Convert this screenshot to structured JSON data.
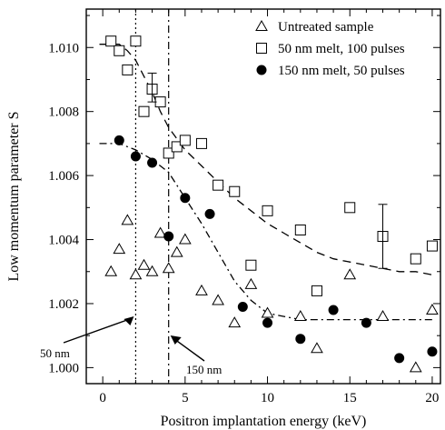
{
  "chart_data": {
    "type": "scatter",
    "xlabel": "Positron implantation energy (keV)",
    "ylabel": "Low momentum parameter S",
    "xlim": [
      -1,
      20.5
    ],
    "ylim": [
      0.9995,
      1.0112
    ],
    "xticks": [
      0,
      5,
      10,
      15,
      20
    ],
    "xtick_labels": [
      "0",
      "5",
      "10",
      "15",
      "20"
    ],
    "yticks": [
      1.0,
      1.002,
      1.004,
      1.006,
      1.008,
      1.01
    ],
    "ytick_labels": [
      "1.000",
      "1.002",
      "1.004",
      "1.006",
      "1.008",
      "1.010"
    ],
    "grid": false,
    "legend_position": "top-right",
    "series": [
      {
        "name": "Untreated sample",
        "marker": "triangle-open",
        "points": [
          [
            0.5,
            1.003
          ],
          [
            1.0,
            1.0037
          ],
          [
            1.5,
            1.0046
          ],
          [
            2.0,
            1.0029
          ],
          [
            2.5,
            1.0032
          ],
          [
            3.0,
            1.003
          ],
          [
            3.5,
            1.0042
          ],
          [
            4.0,
            1.0031
          ],
          [
            4.5,
            1.0036
          ],
          [
            5.0,
            1.004
          ],
          [
            6.0,
            1.0024
          ],
          [
            7.0,
            1.0021
          ],
          [
            8.0,
            1.0014
          ],
          [
            9.0,
            1.0026
          ],
          [
            10.0,
            1.0017
          ],
          [
            12.0,
            1.0016
          ],
          [
            13.0,
            1.0006
          ],
          [
            15.0,
            1.0029
          ],
          [
            17.0,
            1.0016
          ],
          [
            19.0,
            1.0
          ],
          [
            20.0,
            1.0018
          ]
        ]
      },
      {
        "name": "50 nm melt, 100 pulses",
        "marker": "square-open",
        "points": [
          [
            0.5,
            1.0102
          ],
          [
            1.0,
            1.0099
          ],
          [
            1.5,
            1.0093
          ],
          [
            2.0,
            1.0102
          ],
          [
            2.5,
            1.008
          ],
          [
            3.0,
            1.0087
          ],
          [
            3.5,
            1.0083
          ],
          [
            4.0,
            1.0067
          ],
          [
            4.5,
            1.0069
          ],
          [
            5.0,
            1.0071
          ],
          [
            6.0,
            1.007
          ],
          [
            7.0,
            1.0057
          ],
          [
            8.0,
            1.0055
          ],
          [
            9.0,
            1.0032
          ],
          [
            10.0,
            1.0049
          ],
          [
            12.0,
            1.0043
          ],
          [
            13.0,
            1.0024
          ],
          [
            15.0,
            1.005
          ],
          [
            17.0,
            1.0041
          ],
          [
            19.0,
            1.0034
          ],
          [
            20.0,
            1.0038
          ]
        ],
        "error_bars": [
          {
            "x": 3.0,
            "y": 1.0087,
            "low": 1.0083,
            "high": 1.0092
          },
          {
            "x": 17.0,
            "y": 1.0041,
            "low": 1.0031,
            "high": 1.0051
          }
        ]
      },
      {
        "name": "150 nm melt, 50 pulses",
        "marker": "circle-filled",
        "points": [
          [
            1.0,
            1.0071
          ],
          [
            2.0,
            1.0066
          ],
          [
            3.0,
            1.0064
          ],
          [
            4.0,
            1.0041
          ],
          [
            5.0,
            1.0053
          ],
          [
            6.5,
            1.0048
          ],
          [
            8.5,
            1.0019
          ],
          [
            10.0,
            1.0014
          ],
          [
            12.0,
            1.0009
          ],
          [
            14.0,
            1.0018
          ],
          [
            16.0,
            1.0014
          ],
          [
            18.0,
            1.0003
          ],
          [
            20.0,
            1.0005
          ]
        ]
      }
    ],
    "fit_curves": [
      {
        "style": "dashed",
        "points": [
          [
            -0.2,
            1.0101
          ],
          [
            1.0,
            1.0101
          ],
          [
            1.5,
            1.0099
          ],
          [
            2.0,
            1.0096
          ],
          [
            2.5,
            1.0091
          ],
          [
            3.0,
            1.0086
          ],
          [
            3.5,
            1.008
          ],
          [
            4.0,
            1.0075
          ],
          [
            5.0,
            1.0068
          ],
          [
            6.0,
            1.0063
          ],
          [
            7.0,
            1.0058
          ],
          [
            8.0,
            1.0053
          ],
          [
            9.0,
            1.0049
          ],
          [
            10.0,
            1.0045
          ],
          [
            11.0,
            1.0042
          ],
          [
            12.0,
            1.0039
          ],
          [
            13.0,
            1.0036
          ],
          [
            14.0,
            1.0034
          ],
          [
            15.0,
            1.0033
          ],
          [
            16.0,
            1.0032
          ],
          [
            17.0,
            1.0031
          ],
          [
            18.0,
            1.003
          ],
          [
            19.0,
            1.003
          ],
          [
            20.0,
            1.0029
          ]
        ]
      },
      {
        "style": "dash-dot",
        "points": [
          [
            -0.2,
            1.007
          ],
          [
            1.0,
            1.007
          ],
          [
            2.0,
            1.0068
          ],
          [
            3.0,
            1.0065
          ],
          [
            4.0,
            1.0061
          ],
          [
            5.0,
            1.0053
          ],
          [
            6.0,
            1.0045
          ],
          [
            7.0,
            1.0036
          ],
          [
            8.0,
            1.0027
          ],
          [
            9.0,
            1.0021
          ],
          [
            10.0,
            1.0017
          ],
          [
            11.0,
            1.0016
          ],
          [
            12.0,
            1.0015
          ],
          [
            14.0,
            1.0015
          ],
          [
            16.0,
            1.0015
          ],
          [
            18.0,
            1.0015
          ],
          [
            20.0,
            1.0015
          ]
        ]
      }
    ],
    "vertical_lines": [
      {
        "x": 2.0,
        "style": "dotted",
        "label": "50 nm"
      },
      {
        "x": 4.0,
        "style": "dash-dot",
        "label": "150 nm"
      }
    ]
  }
}
